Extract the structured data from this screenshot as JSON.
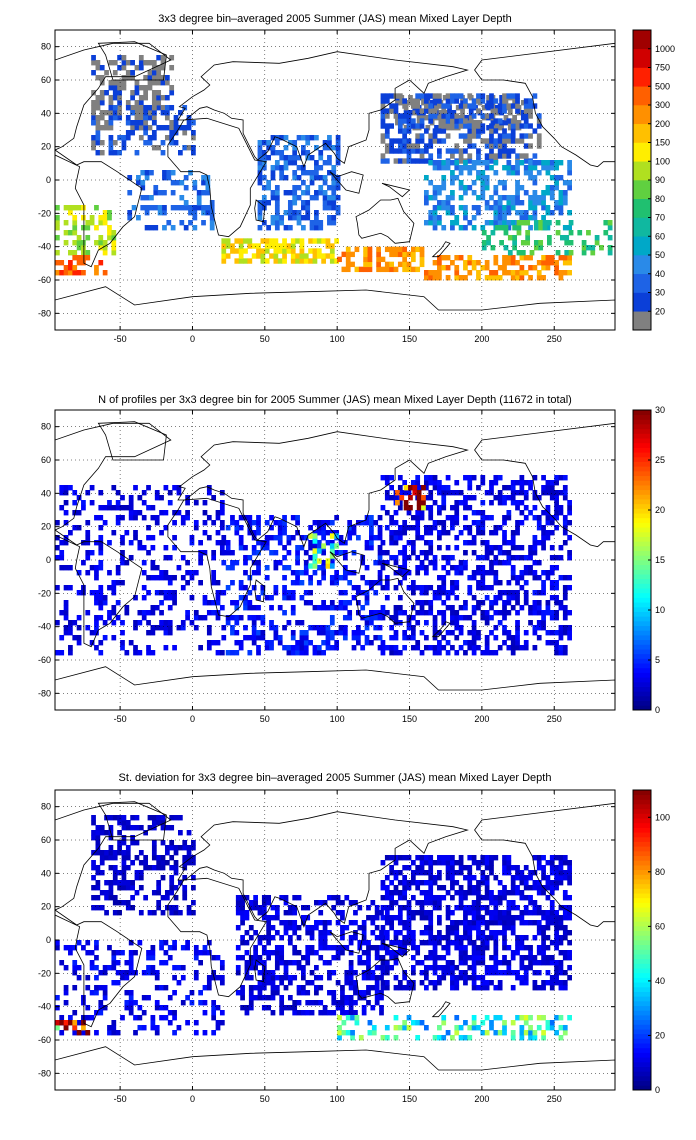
{
  "chart_data": [
    {
      "type": "heatmap",
      "title": "3x3 degree bin–averaged 2005 Summer (JAS) mean Mixed Layer Depth",
      "xlim": [
        -95,
        292
      ],
      "ylim": [
        -90,
        90
      ],
      "xticks": [
        -50,
        0,
        50,
        100,
        150,
        200,
        250
      ],
      "yticks": [
        80,
        60,
        40,
        20,
        0,
        -20,
        -40,
        -60,
        -80
      ],
      "grid": true,
      "colorbar": {
        "scale": "categorical",
        "labels": [
          "20",
          "30",
          "40",
          "50",
          "60",
          "70",
          "80",
          "90",
          "100",
          "150",
          "200",
          "300",
          "500",
          "750",
          "1000"
        ],
        "colors": [
          "#808080",
          "#0b3fd8",
          "#1e63e6",
          "#2a8ae8",
          "#00a8c8",
          "#10b8a0",
          "#20c070",
          "#60d040",
          "#b0e020",
          "#ffee00",
          "#ffc000",
          "#ff9000",
          "#ff6000",
          "#ff2000",
          "#d00000",
          "#a00000"
        ]
      },
      "regions": [
        {
          "lon": [
            -70,
            -15
          ],
          "lat": [
            30,
            75
          ],
          "category": 0,
          "density": 0.5
        },
        {
          "lon": [
            -70,
            0
          ],
          "lat": [
            15,
            45
          ],
          "category": 1,
          "density": 0.35
        },
        {
          "lon": [
            140,
            230
          ],
          "lat": [
            30,
            50
          ],
          "category": 0,
          "density": 0.55
        },
        {
          "lon": [
            130,
            240
          ],
          "lat": [
            10,
            50
          ],
          "category": 1,
          "density": 0.55
        },
        {
          "lon": [
            45,
            100
          ],
          "lat": [
            -30,
            25
          ],
          "category": 2,
          "density": 0.55
        },
        {
          "lon": [
            160,
            260
          ],
          "lat": [
            -30,
            10
          ],
          "category": 3,
          "density": 0.5
        },
        {
          "lon": [
            -45,
            15
          ],
          "lat": [
            -30,
            5
          ],
          "category": 2,
          "density": 0.35
        },
        {
          "lon": [
            -95,
            -55
          ],
          "lat": [
            -45,
            -15
          ],
          "category": 8,
          "density": 0.5
        },
        {
          "lon": [
            20,
            100
          ],
          "lat": [
            -50,
            -35
          ],
          "category": 9,
          "density": 0.6
        },
        {
          "lon": [
            100,
            160
          ],
          "lat": [
            -55,
            -40
          ],
          "category": 11,
          "density": 0.6
        },
        {
          "lon": [
            160,
            260
          ],
          "lat": [
            -60,
            -45
          ],
          "category": 11,
          "density": 0.55
        },
        {
          "lon": [
            -95,
            -60
          ],
          "lat": [
            -57,
            -47
          ],
          "category": 12,
          "density": 0.6
        },
        {
          "lon": [
            200,
            290
          ],
          "lat": [
            -45,
            -25
          ],
          "category": 6,
          "density": 0.35
        }
      ]
    },
    {
      "type": "heatmap",
      "title": "N of profiles per 3x3 degree bin for 2005 Summer (JAS) mean Mixed Layer Depth  (11672 in total)",
      "xlim": [
        -95,
        292
      ],
      "ylim": [
        -90,
        90
      ],
      "xticks": [
        -50,
        0,
        50,
        100,
        150,
        200,
        250
      ],
      "yticks": [
        80,
        60,
        40,
        20,
        0,
        -20,
        -40,
        -60,
        -80
      ],
      "grid": true,
      "colorbar": {
        "scale": "continuous",
        "min": 0,
        "max": 30,
        "ticks": [
          0,
          5,
          10,
          15,
          20,
          25,
          30
        ],
        "colormap": "jet"
      },
      "regions": [
        {
          "lon": [
            -95,
            20
          ],
          "lat": [
            -57,
            45
          ],
          "level": 3,
          "density": 0.3
        },
        {
          "lon": [
            130,
            260
          ],
          "lat": [
            -57,
            50
          ],
          "level": 3,
          "density": 0.45
        },
        {
          "lon": [
            20,
            130
          ],
          "lat": [
            -57,
            25
          ],
          "level": 4,
          "density": 0.4
        },
        {
          "lon": [
            140,
            160
          ],
          "lat": [
            30,
            45
          ],
          "level": 27,
          "density": 0.5
        },
        {
          "lon": [
            80,
            100
          ],
          "lat": [
            -5,
            15
          ],
          "level": 14,
          "density": 0.3
        }
      ]
    },
    {
      "type": "heatmap",
      "title": "St. deviation for 3x3 degree bin–averaged 2005 Summer (JAS) mean Mixed Layer Depth",
      "xlim": [
        -95,
        292
      ],
      "ylim": [
        -90,
        90
      ],
      "xticks": [
        -50,
        0,
        50,
        100,
        150,
        200,
        250
      ],
      "yticks": [
        80,
        60,
        40,
        20,
        0,
        -20,
        -40,
        -60,
        -80
      ],
      "grid": true,
      "colorbar": {
        "scale": "continuous",
        "min": 0,
        "max": 110,
        "ticks": [
          0,
          20,
          40,
          60,
          80,
          100
        ],
        "colormap": "jet"
      },
      "regions": [
        {
          "lon": [
            -70,
            0
          ],
          "lat": [
            15,
            75
          ],
          "level": 8,
          "density": 0.45
        },
        {
          "lon": [
            130,
            260
          ],
          "lat": [
            -30,
            50
          ],
          "level": 10,
          "density": 0.6
        },
        {
          "lon": [
            30,
            130
          ],
          "lat": [
            -45,
            25
          ],
          "level": 10,
          "density": 0.5
        },
        {
          "lon": [
            -95,
            20
          ],
          "lat": [
            -57,
            0
          ],
          "level": 12,
          "density": 0.3
        },
        {
          "lon": [
            100,
            260
          ],
          "lat": [
            -60,
            -45
          ],
          "level": 45,
          "density": 0.45
        },
        {
          "lon": [
            -95,
            -70
          ],
          "lat": [
            -57,
            -50
          ],
          "level": 90,
          "density": 0.3
        }
      ]
    }
  ]
}
